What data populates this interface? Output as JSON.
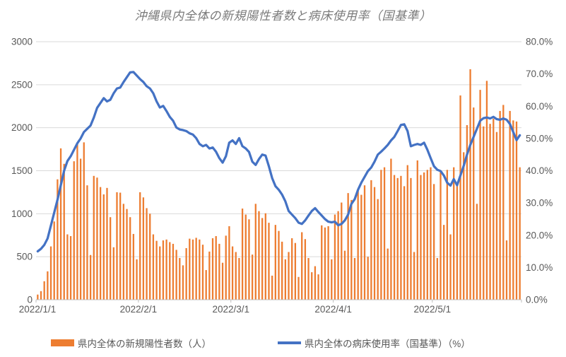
{
  "title": "沖縄県内全体の新規陽性者数と病床使用率（国基準）",
  "chart_data": {
    "type": "combo",
    "start_date": "2022/1/1",
    "frequency": "daily",
    "x_tick_labels": [
      "2022/1/1",
      "2022/2/1",
      "2022/3/1",
      "2022/4/1",
      "2022/5/1"
    ],
    "x_tick_day_offsets": [
      0,
      31,
      59,
      90,
      120
    ],
    "y_left": {
      "min": 0,
      "max": 3000,
      "step": 500,
      "tick_labels": [
        "3000",
        "2500",
        "2000",
        "1500",
        "1000",
        "500",
        "0"
      ]
    },
    "y_right": {
      "min": 0,
      "max": 80,
      "step": 10,
      "tick_labels": [
        "80.0%",
        "70.0%",
        "60.0%",
        "50.0%",
        "40.0%",
        "30.0%",
        "20.0%",
        "10.0%",
        "0.0%"
      ]
    },
    "grid": "horizontal-only",
    "legend_position": "bottom",
    "colors": {
      "bar": "#ED7D31",
      "line": "#4472C4",
      "gridline": "#D9D9D9",
      "axis": "#BFBFBF",
      "label": "#595959",
      "title": "#7A7A7A"
    },
    "series": [
      {
        "name": "県内全体の新規陽性者数（人）",
        "type": "bar",
        "axis": "left",
        "color": "#ED7D31",
        "values": [
          60,
          100,
          215,
          330,
          620,
          910,
          1400,
          1760,
          1580,
          760,
          740,
          1610,
          1815,
          1640,
          1830,
          1330,
          520,
          1440,
          1420,
          1310,
          1225,
          1300,
          960,
          610,
          1250,
          1245,
          1115,
          1055,
          960,
          765,
          470,
          1250,
          1190,
          1065,
          1000,
          760,
          685,
          620,
          690,
          700,
          670,
          650,
          580,
          485,
          400,
          600,
          710,
          700,
          720,
          700,
          640,
          345,
          560,
          715,
          740,
          650,
          430,
          745,
          855,
          620,
          555,
          485,
          1060,
          990,
          935,
          525,
          1115,
          1030,
          950,
          1005,
          895,
          280,
          870,
          800,
          675,
          470,
          555,
          715,
          660,
          265,
          785,
          705,
          485,
          320,
          390,
          295,
          865,
          840,
          855,
          470,
          990,
          1030,
          1130,
          570,
          1240,
          1160,
          485,
          1280,
          1220,
          1330,
          500,
          1390,
          1310,
          1170,
          1510,
          1540,
          595,
          1640,
          1450,
          1415,
          1440,
          1320,
          1565,
          1415,
          555,
          1620,
          1450,
          1480,
          1510,
          1540,
          1345,
          485,
          1495,
          870,
          1510,
          760,
          1540,
          1320,
          2375,
          1715,
          2030,
          2680,
          2235,
          1115,
          2440,
          2015,
          2545,
          2045,
          2105,
          1950,
          2195,
          2265,
          690,
          2195,
          2085,
          2072,
          1540
        ]
      },
      {
        "name": "県内全体の病床使用率（国基準）（%）",
        "type": "line",
        "axis": "right",
        "color": "#4472C4",
        "values": [
          15.0,
          15.8,
          17.0,
          19.0,
          23.0,
          27.0,
          31.0,
          35.5,
          40.0,
          43.0,
          44.5,
          46.5,
          48.5,
          50.0,
          52.0,
          53.0,
          54.0,
          56.5,
          59.5,
          61.0,
          62.5,
          61.5,
          62.0,
          64.0,
          65.5,
          65.8,
          67.5,
          69.0,
          70.5,
          70.6,
          69.5,
          68.4,
          67.5,
          66.2,
          65.5,
          64.0,
          61.5,
          59.6,
          60.1,
          58.5,
          56.7,
          55.5,
          53.4,
          52.8,
          52.6,
          52.3,
          51.6,
          51.2,
          50.1,
          48.3,
          47.6,
          48.0,
          46.9,
          47.2,
          45.9,
          43.9,
          42.5,
          44.5,
          48.7,
          49.4,
          48.3,
          50.1,
          47.6,
          46.9,
          45.8,
          42.8,
          41.8,
          43.6,
          45.0,
          44.7,
          41.4,
          37.7,
          35.2,
          34.1,
          32.6,
          30.5,
          27.5,
          26.4,
          25.3,
          23.9,
          23.5,
          24.6,
          26.1,
          27.5,
          28.4,
          27.2,
          26.1,
          25.0,
          24.2,
          24.0,
          24.2,
          23.1,
          23.5,
          24.6,
          26.4,
          29.7,
          31.2,
          34.1,
          36.3,
          38.1,
          39.9,
          41.0,
          42.8,
          45.0,
          45.9,
          46.9,
          48.0,
          49.4,
          50.5,
          52.3,
          54.2,
          54.4,
          52.3,
          47.6,
          48.0,
          48.3,
          48.0,
          48.7,
          46.5,
          43.9,
          41.4,
          40.3,
          39.9,
          38.5,
          36.3,
          35.4,
          37.4,
          35.5,
          38.5,
          41.5,
          45.0,
          48.0,
          50.5,
          53.0,
          55.5,
          56.3,
          56.5,
          56.2,
          56.7,
          56.0,
          55.8,
          56.2,
          55.8,
          54.5,
          52.0,
          49.5,
          51.0
        ]
      }
    ]
  },
  "legend": {
    "cases_label": "県内全体の新規陽性者数（人）",
    "usage_label": "県内全体の病床使用率（国基準）（%）"
  }
}
